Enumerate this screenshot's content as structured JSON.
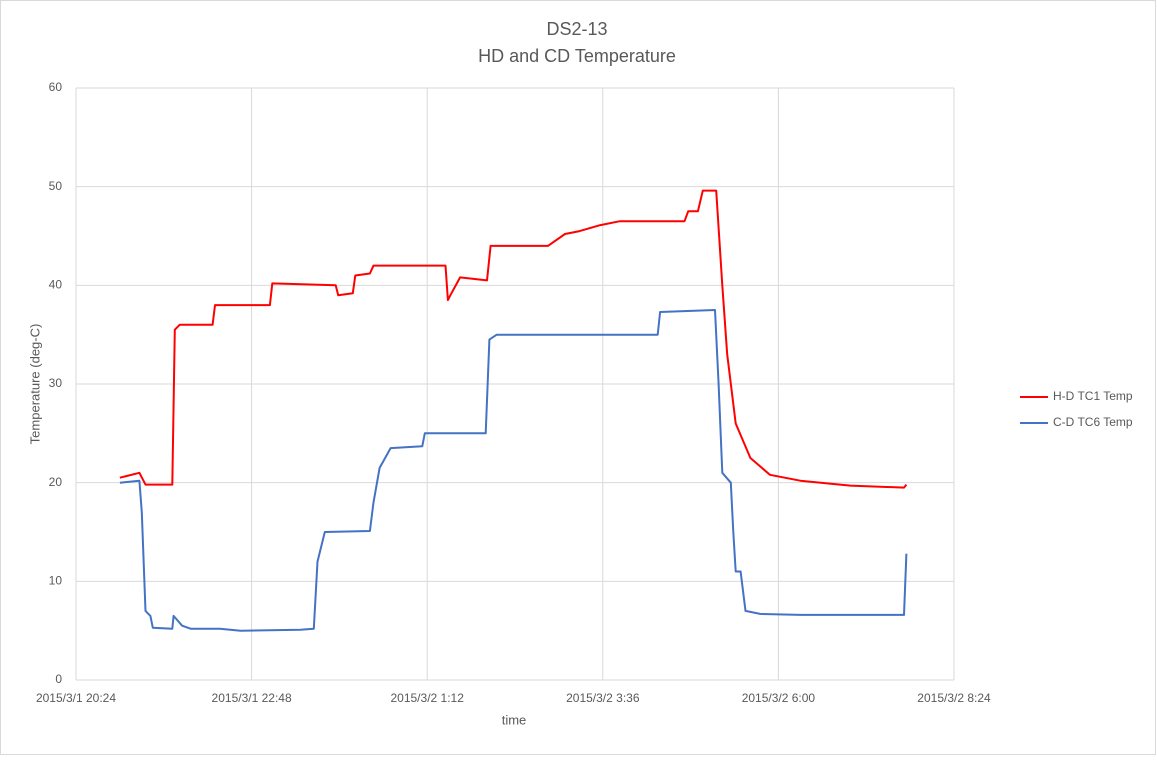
{
  "chart_data": {
    "type": "line",
    "title": "DS2-13",
    "subtitle": "HD and CD Temperature",
    "x_label": "time",
    "y_label": "Temperature (deg-C)",
    "xlim": [
      "2015/3/1 20:24",
      "2015/3/2 8:24"
    ],
    "xticks": [
      "2015/3/1 20:24",
      "2015/3/1 22:48",
      "2015/3/2 1:12",
      "2015/3/2 3:36",
      "2015/3/2 6:00",
      "2015/3/2 8:24"
    ],
    "ylim": [
      0,
      60
    ],
    "yticks": [
      0,
      10,
      20,
      30,
      40,
      50,
      60
    ],
    "grid": true,
    "legend": "right",
    "series": [
      {
        "name": "H-D TC1 Temp",
        "color": "#ff0000",
        "x": [
          "2015/3/1 21:00",
          "2015/3/1 21:16",
          "2015/3/1 21:21",
          "2015/3/1 21:43",
          "2015/3/1 21:45",
          "2015/3/1 21:49",
          "2015/3/1 22:16",
          "2015/3/1 22:18",
          "2015/3/1 23:03",
          "2015/3/1 23:05",
          "2015/3/1 23:57",
          "2015/3/1 23:59",
          "2015/3/2 0:11",
          "2015/3/2 0:13",
          "2015/3/2 0:25",
          "2015/3/2 0:28",
          "2015/3/2 1:27",
          "2015/3/2 1:29",
          "2015/3/2 1:31",
          "2015/3/2 1:39",
          "2015/3/2 2:01",
          "2015/3/2 2:04",
          "2015/3/2 2:51",
          "2015/3/2 3:05",
          "2015/3/2 3:17",
          "2015/3/2 3:34",
          "2015/3/2 3:50",
          "2015/3/2 4:43",
          "2015/3/2 4:46",
          "2015/3/2 4:54",
          "2015/3/2 4:58",
          "2015/3/2 5:09",
          "2015/3/2 5:14",
          "2015/3/2 5:18",
          "2015/3/2 5:25",
          "2015/3/2 5:37",
          "2015/3/2 5:53",
          "2015/3/2 6:18",
          "2015/3/2 6:59",
          "2015/3/2 7:43",
          "2015/3/2 7:45"
        ],
        "values": [
          20.5,
          21,
          19.8,
          19.8,
          35.5,
          36,
          36,
          38,
          38,
          40.2,
          40,
          39,
          39.2,
          41,
          41.2,
          42,
          42,
          38.5,
          39,
          40.8,
          40.5,
          44,
          44,
          45.2,
          45.5,
          46.1,
          46.5,
          46.5,
          47.5,
          47.5,
          49.6,
          49.6,
          40,
          33,
          26,
          22.5,
          20.8,
          20.2,
          19.7,
          19.5,
          19.8
        ]
      },
      {
        "name": "C-D TC6 Temp",
        "color": "#4472c4",
        "x": [
          "2015/3/1 21:00",
          "2015/3/1 21:16",
          "2015/3/1 21:18",
          "2015/3/1 21:21",
          "2015/3/1 21:25",
          "2015/3/1 21:27",
          "2015/3/1 21:43",
          "2015/3/1 21:44",
          "2015/3/1 21:51",
          "2015/3/1 21:58",
          "2015/3/1 22:22",
          "2015/3/1 22:39",
          "2015/3/1 23:28",
          "2015/3/1 23:39",
          "2015/3/1 23:42",
          "2015/3/1 23:48",
          "2015/3/2 0:25",
          "2015/3/2 0:28",
          "2015/3/2 0:33",
          "2015/3/2 0:42",
          "2015/3/2 1:08",
          "2015/3/2 1:10",
          "2015/3/2 2:00",
          "2015/3/2 2:03",
          "2015/3/2 2:09",
          "2015/3/2 4:21",
          "2015/3/2 4:23",
          "2015/3/2 5:08",
          "2015/3/2 5:11",
          "2015/3/2 5:14",
          "2015/3/2 5:21",
          "2015/3/2 5:23",
          "2015/3/2 5:25",
          "2015/3/2 5:29",
          "2015/3/2 5:33",
          "2015/3/2 5:45",
          "2015/3/2 6:18",
          "2015/3/2 7:43",
          "2015/3/2 7:45"
        ],
        "values": [
          20,
          20.2,
          17,
          7,
          6.5,
          5.3,
          5.2,
          6.5,
          5.5,
          5.2,
          5.2,
          5,
          5.1,
          5.2,
          12,
          15,
          15.1,
          18,
          21.5,
          23.5,
          23.7,
          25,
          25,
          34.5,
          35,
          35,
          37.3,
          37.5,
          30,
          21,
          20,
          15,
          11,
          11,
          7,
          6.7,
          6.6,
          6.6,
          12.8
        ]
      }
    ]
  }
}
